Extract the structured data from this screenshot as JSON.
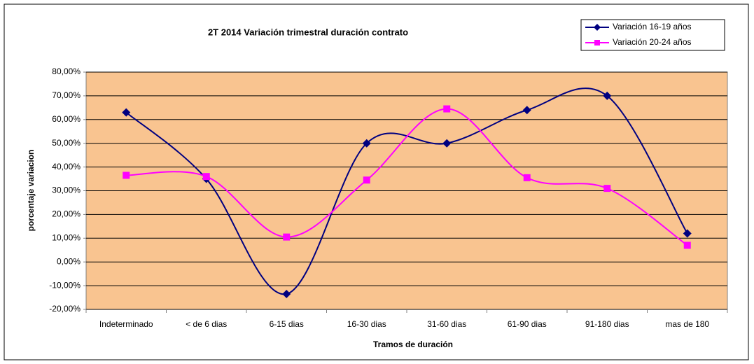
{
  "chart_data": {
    "type": "line",
    "title": "2T 2014 Variación trimestral duración contrato",
    "x_label": "Tramos de duración",
    "y_label": "porcentaje variacion",
    "categories": [
      "Indeterminado",
      "< de 6 dias",
      "6-15 dias",
      "16-30 dias",
      "31-60 dias",
      "61-90 dias",
      "91-180 dias",
      "mas de 180"
    ],
    "series": [
      {
        "name": "Variación 16-19 años",
        "color": "#000080",
        "marker": "diamond",
        "values": [
          63,
          35,
          -13.5,
          50,
          50,
          64,
          70,
          12
        ]
      },
      {
        "name": "Variación 20-24 años",
        "color": "#FF00FF",
        "marker": "square",
        "values": [
          36.5,
          36,
          10.5,
          34.5,
          64.5,
          35.5,
          31,
          7
        ]
      }
    ],
    "ylim": [
      -20,
      80
    ],
    "yticks": [
      {
        "value": -20,
        "label": "-20,00%"
      },
      {
        "value": -10,
        "label": "-10,00%"
      },
      {
        "value": 0,
        "label": "0,00%"
      },
      {
        "value": 10,
        "label": "10,00%"
      },
      {
        "value": 20,
        "label": "20,00%"
      },
      {
        "value": 30,
        "label": "30,00%"
      },
      {
        "value": 40,
        "label": "40,00%"
      },
      {
        "value": 50,
        "label": "50,00%"
      },
      {
        "value": 60,
        "label": "60,00%"
      },
      {
        "value": 70,
        "label": "70,00%"
      },
      {
        "value": 80,
        "label": "80,00%"
      }
    ],
    "grid": true,
    "smooth": true,
    "plot_background": "#F9C490",
    "legend": "top-right"
  }
}
